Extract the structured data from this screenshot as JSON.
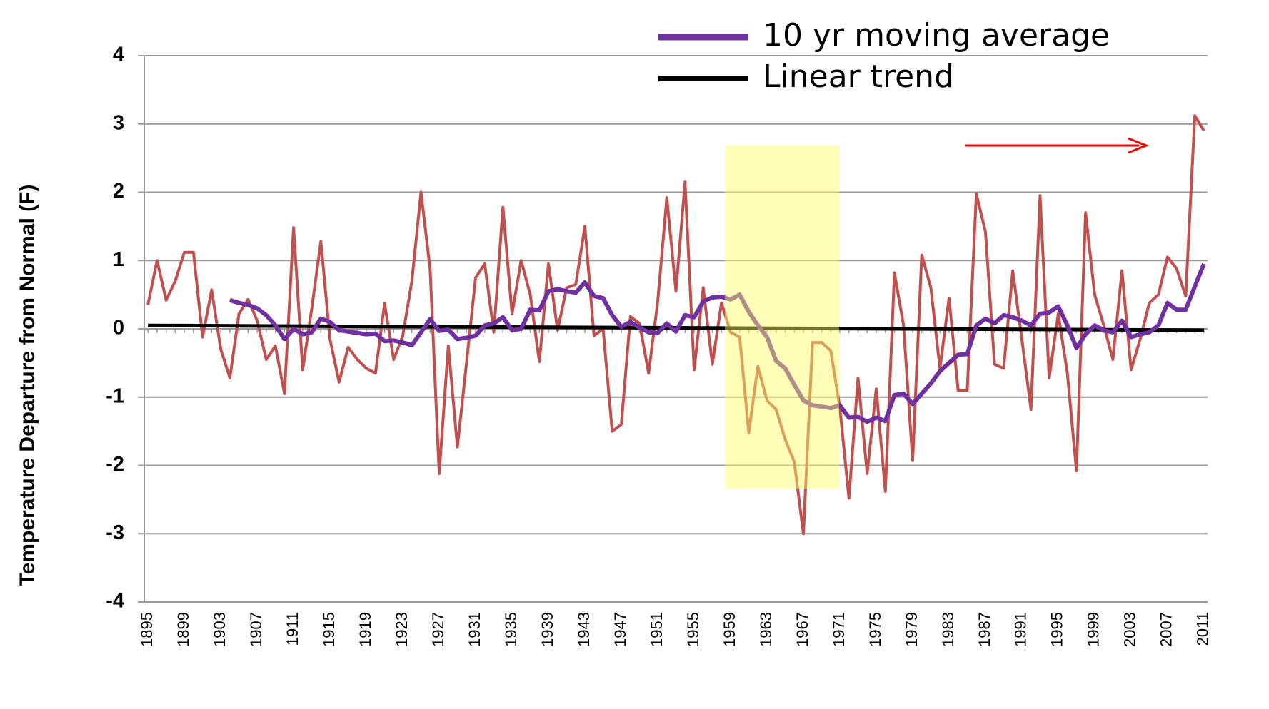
{
  "chart_data": {
    "type": "line",
    "y_label": "Temperature Departure from Normal (F)",
    "x": [
      1895,
      1896,
      1897,
      1898,
      1899,
      1900,
      1901,
      1902,
      1903,
      1904,
      1905,
      1906,
      1907,
      1908,
      1909,
      1910,
      1911,
      1912,
      1913,
      1914,
      1915,
      1916,
      1917,
      1918,
      1919,
      1920,
      1921,
      1922,
      1923,
      1924,
      1925,
      1926,
      1927,
      1928,
      1929,
      1930,
      1931,
      1932,
      1933,
      1934,
      1935,
      1936,
      1937,
      1938,
      1939,
      1940,
      1941,
      1942,
      1943,
      1944,
      1945,
      1946,
      1947,
      1948,
      1949,
      1950,
      1951,
      1952,
      1953,
      1954,
      1955,
      1956,
      1957,
      1958,
      1959,
      1960,
      1961,
      1962,
      1963,
      1964,
      1965,
      1966,
      1967,
      1968,
      1969,
      1970,
      1971,
      1972,
      1973,
      1974,
      1975,
      1976,
      1977,
      1978,
      1979,
      1980,
      1981,
      1982,
      1983,
      1984,
      1985,
      1986,
      1987,
      1988,
      1989,
      1990,
      1991,
      1992,
      1993,
      1994,
      1995,
      1996,
      1997,
      1998,
      1999,
      2000,
      2001,
      2002,
      2003,
      2004,
      2005,
      2006,
      2007,
      2008,
      2009,
      2010,
      2011
    ],
    "xlim": [
      1894.6,
      2011.4
    ],
    "xticks": [
      1895,
      1899,
      1903,
      1907,
      1911,
      1915,
      1919,
      1923,
      1927,
      1931,
      1935,
      1939,
      1943,
      1947,
      1951,
      1955,
      1959,
      1963,
      1967,
      1971,
      1975,
      1979,
      1983,
      1987,
      1991,
      1995,
      1999,
      2003,
      2007,
      2011
    ],
    "ylim": [
      -4,
      4
    ],
    "yticks": [
      -4,
      -3,
      -2,
      -1,
      0,
      1,
      2,
      3,
      4
    ],
    "grid": true,
    "series": [
      {
        "color": "#c0504d",
        "values": [
          0.35,
          1.0,
          0.42,
          0.7,
          1.12,
          1.12,
          -0.12,
          0.57,
          -0.3,
          -0.72,
          0.22,
          0.43,
          0.12,
          -0.45,
          -0.25,
          -0.95,
          1.48,
          -0.6,
          0.3,
          1.28,
          -0.15,
          -0.78,
          -0.27,
          -0.45,
          -0.58,
          -0.65,
          0.37,
          -0.45,
          -0.1,
          0.7,
          2.0,
          0.88,
          -2.12,
          -0.25,
          -1.73,
          -0.5,
          0.75,
          0.95,
          -0.05,
          1.78,
          0.22,
          1.0,
          0.5,
          -0.48,
          0.95,
          -0.02,
          0.6,
          0.65,
          1.5,
          -0.1,
          0.0,
          -1.5,
          -1.4,
          0.18,
          0.08,
          -0.65,
          0.4,
          1.92,
          0.55,
          2.15,
          -0.6,
          0.6,
          -0.52,
          0.38,
          -0.05,
          -0.12,
          -1.52,
          -0.55,
          -1.05,
          -1.18,
          -1.62,
          -1.95,
          -3.0,
          -0.2,
          -0.2,
          -0.32,
          -1.15,
          -2.48,
          -0.72,
          -2.12,
          -0.88,
          -2.38,
          0.82,
          0.05,
          -1.93,
          1.08,
          0.6,
          -0.58,
          0.45,
          -0.9,
          -0.9,
          1.98,
          1.42,
          -0.52,
          -0.58,
          0.85,
          -0.15,
          -1.18,
          1.95,
          -0.72,
          0.22,
          -0.65,
          -2.08,
          1.7,
          0.5,
          0.05,
          -0.45,
          0.85,
          -0.6,
          -0.15,
          0.38,
          0.5,
          1.05,
          0.88,
          0.48,
          3.12,
          2.9
        ]
      },
      {
        "name": "Linear trend",
        "color": "#000000",
        "x": [
          1895,
          2011
        ],
        "values": [
          0.05,
          -0.02
        ]
      },
      {
        "name": "10 yr moving average",
        "color": "#7030a0",
        "values": [
          null,
          null,
          null,
          null,
          null,
          null,
          null,
          null,
          null,
          0.42,
          0.38,
          0.35,
          0.3,
          0.2,
          0.05,
          -0.15,
          0.0,
          -0.08,
          -0.05,
          0.15,
          0.1,
          -0.02,
          -0.04,
          -0.06,
          -0.08,
          -0.07,
          -0.18,
          -0.17,
          -0.2,
          -0.24,
          -0.05,
          0.14,
          -0.03,
          -0.01,
          -0.15,
          -0.13,
          -0.1,
          0.05,
          0.08,
          0.17,
          -0.02,
          0.0,
          0.28,
          0.27,
          0.55,
          0.58,
          0.55,
          0.53,
          0.68,
          0.48,
          0.45,
          0.2,
          0.03,
          0.1,
          0.02,
          -0.05,
          -0.06,
          0.08,
          -0.04,
          0.2,
          0.17,
          0.4,
          0.46,
          0.47,
          0.43,
          0.5,
          0.25,
          0.05,
          -0.12,
          -0.47,
          -0.58,
          -0.82,
          -1.05,
          -1.12,
          -1.14,
          -1.16,
          -1.12,
          -1.3,
          -1.29,
          -1.36,
          -1.3,
          -1.35,
          -0.97,
          -0.95,
          -1.1,
          -0.95,
          -0.8,
          -0.62,
          -0.5,
          -0.38,
          -0.37,
          0.05,
          0.15,
          0.08,
          0.2,
          0.17,
          0.12,
          0.05,
          0.22,
          0.24,
          0.33,
          0.05,
          -0.28,
          -0.08,
          0.05,
          -0.02,
          -0.05,
          0.12,
          -0.12,
          -0.08,
          -0.05,
          0.05,
          0.38,
          0.28,
          0.28,
          0.62,
          0.95
        ]
      }
    ]
  }
}
